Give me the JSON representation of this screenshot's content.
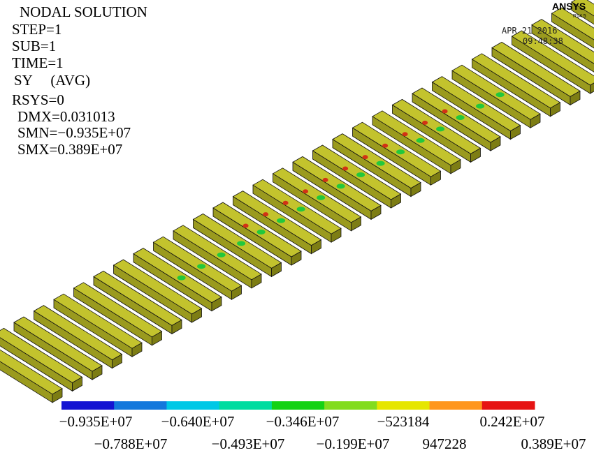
{
  "header": {
    "lines": [
      "NODAL SOLUTION",
      "STEP=1",
      "SUB=1",
      "TIME=1",
      "SY     (AVG)",
      "RSYS=0",
      "DMX=0.031013",
      "SMN=−0.935E+07",
      "SMX=0.389E+07"
    ]
  },
  "logo": {
    "name": "ANSYS",
    "release": "R14.5",
    "date": "APR 21 2016",
    "time": "09:48:38"
  },
  "legend": {
    "labels": [
      "−0.935E+07",
      "−0.788E+07",
      "−0.640E+07",
      "−0.493E+07",
      "−0.346E+07",
      "−0.199E+07",
      "−523184",
      "947228",
      "0.242E+07",
      "0.389E+07"
    ],
    "colors": [
      "#1414d2",
      "#1478dc",
      "#00c8e6",
      "#00dca0",
      "#14d214",
      "#82dc1e",
      "#e6e600",
      "#ff961e",
      "#e61414"
    ]
  }
}
